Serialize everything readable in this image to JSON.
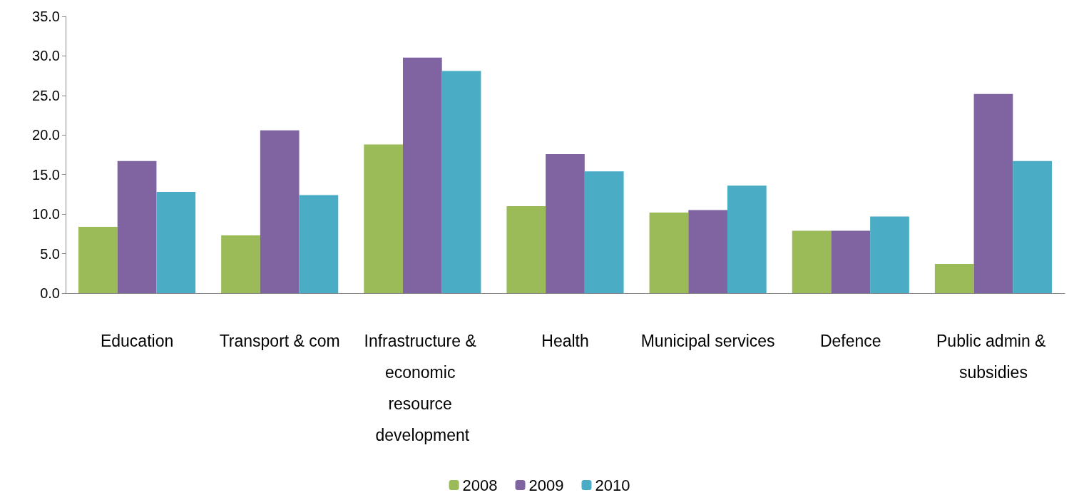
{
  "chart_data": {
    "type": "bar",
    "categories": [
      "Education",
      "Transport & com",
      "Infrastructure & economic resource development",
      "Health",
      "Municipal services",
      "Defence",
      "Public admin & subsidies"
    ],
    "series": [
      {
        "name": "2008",
        "color": "#9bbb59",
        "values": [
          8.4,
          7.3,
          18.8,
          11.0,
          10.2,
          7.9,
          3.7
        ]
      },
      {
        "name": "2009",
        "color": "#8064a2",
        "values": [
          16.7,
          20.6,
          29.8,
          17.6,
          10.5,
          7.9,
          25.2
        ]
      },
      {
        "name": "2010",
        "color": "#4bacc6",
        "values": [
          12.8,
          12.4,
          28.1,
          15.4,
          13.6,
          9.7,
          16.7
        ]
      }
    ],
    "ylim": [
      0,
      35
    ],
    "yticks": [
      {
        "value": 0,
        "label": "0.0"
      },
      {
        "value": 5,
        "label": "5.0"
      },
      {
        "value": 10,
        "label": "10.0"
      },
      {
        "value": 15,
        "label": "15.0"
      },
      {
        "value": 20,
        "label": "20.0"
      },
      {
        "value": 25,
        "label": "25.0"
      },
      {
        "value": 30,
        "label": "30.0"
      },
      {
        "value": 35,
        "label": "35.0"
      }
    ],
    "grid": false,
    "legend": "bottom"
  }
}
